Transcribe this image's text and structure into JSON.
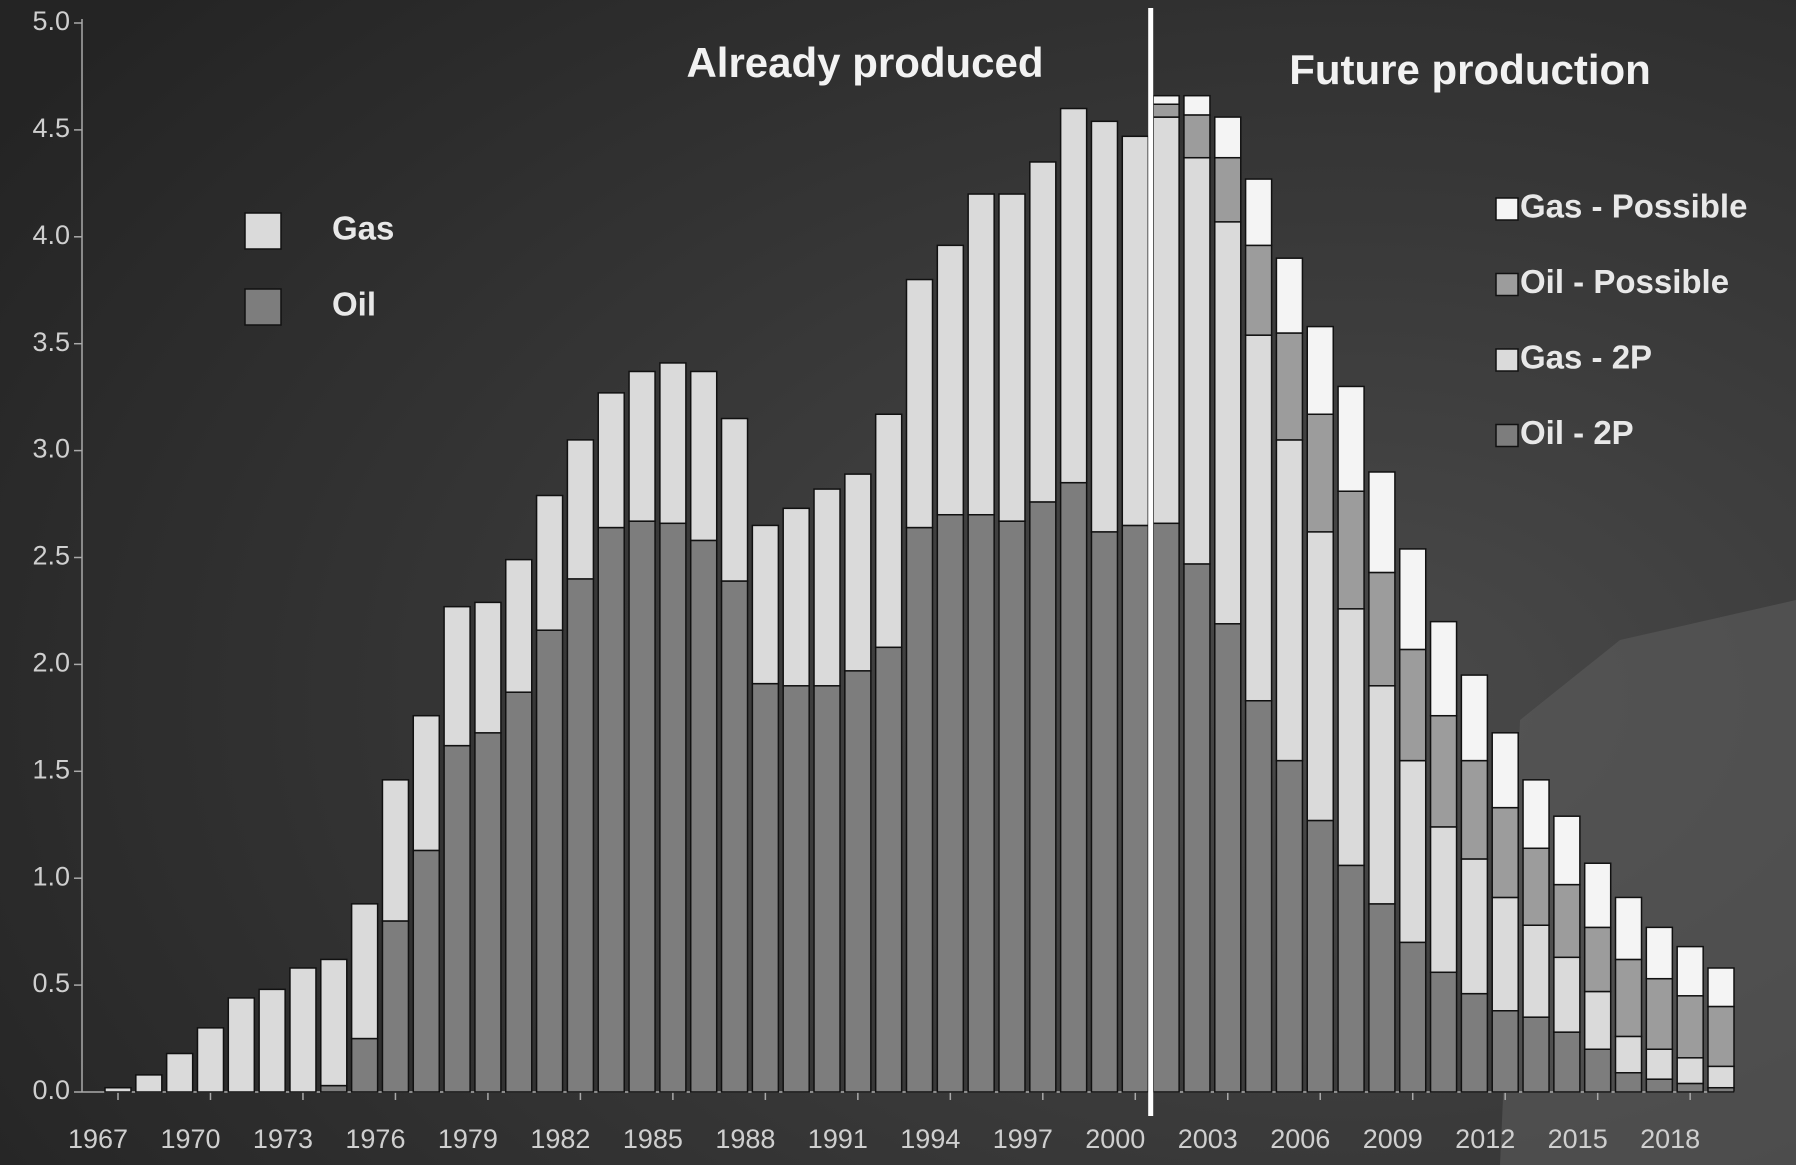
{
  "chart_data": {
    "type": "bar",
    "stacked": true,
    "annotations": [
      "Already produced",
      "Future production"
    ],
    "categories": [
      "1967",
      null,
      null,
      "1970",
      null,
      null,
      "1973",
      null,
      null,
      "1976",
      null,
      null,
      "1979",
      null,
      null,
      "1982",
      null,
      null,
      "1985",
      null,
      null,
      "1988",
      null,
      null,
      "1991",
      null,
      null,
      "1994",
      null,
      null,
      "1997",
      null,
      null,
      "2000",
      null,
      null,
      "2003",
      null,
      null,
      "2006",
      null,
      null,
      "2009",
      null,
      null,
      "2012",
      null,
      null,
      "2015",
      null,
      null,
      "2018",
      null
    ],
    "ylim": [
      0,
      5
    ],
    "yticks": [
      {
        "value": 0,
        "label": "0.0"
      },
      0.5,
      {
        "value": 1,
        "label": "1.0"
      },
      1.5,
      {
        "value": 2,
        "label": "2.0"
      },
      2.5,
      {
        "value": 3,
        "label": "3.0"
      },
      3.5,
      {
        "value": 4,
        "label": "4.0"
      },
      4.5,
      {
        "value": 5,
        "label": "5.0"
      }
    ],
    "series": [
      {
        "name": "Oil",
        "color": "#7d7d7d",
        "values": [
          0,
          0,
          0,
          0,
          0,
          0,
          0,
          0.03,
          0.25,
          0.8,
          1.13,
          1.62,
          1.68,
          1.87,
          2.16,
          2.4,
          2.64,
          2.67,
          2.66,
          2.58,
          2.39,
          1.91,
          1.9,
          1.9,
          1.97,
          2.08,
          2.64,
          2.7,
          2.7,
          2.67,
          2.76,
          2.85,
          2.62,
          2.65,
          null,
          null,
          null,
          null,
          null,
          null,
          null,
          null,
          null,
          null,
          null,
          null,
          null,
          null,
          null,
          null,
          null,
          null,
          null
        ]
      },
      {
        "name": "Gas",
        "color": "#dadada",
        "values": [
          0.02,
          0.08,
          0.18,
          0.3,
          0.44,
          0.48,
          0.58,
          0.59,
          0.63,
          0.66,
          0.63,
          0.65,
          0.61,
          0.62,
          0.63,
          0.65,
          0.63,
          0.7,
          0.75,
          0.79,
          0.76,
          0.74,
          0.83,
          0.92,
          0.92,
          1.09,
          1.16,
          1.26,
          1.5,
          1.53,
          1.59,
          1.75,
          1.92,
          1.82,
          null,
          null,
          null,
          null,
          null,
          null,
          null,
          null,
          null,
          null,
          null,
          null,
          null,
          null,
          null,
          null,
          null,
          null,
          null
        ]
      },
      {
        "name": "Oil - 2P",
        "color": "#7d7d7d",
        "values": [
          null,
          null,
          null,
          null,
          null,
          null,
          null,
          null,
          null,
          null,
          null,
          null,
          null,
          null,
          null,
          null,
          null,
          null,
          null,
          null,
          null,
          null,
          null,
          null,
          null,
          null,
          null,
          null,
          null,
          null,
          null,
          null,
          null,
          null,
          2.66,
          2.47,
          2.19,
          1.83,
          1.55,
          1.27,
          1.06,
          0.88,
          0.7,
          0.56,
          0.46,
          0.38,
          0.35,
          0.28,
          0.2,
          0.09,
          0.06,
          0.04,
          0.02
        ]
      },
      {
        "name": "Gas - 2P",
        "color": "#dadada",
        "values": [
          null,
          null,
          null,
          null,
          null,
          null,
          null,
          null,
          null,
          null,
          null,
          null,
          null,
          null,
          null,
          null,
          null,
          null,
          null,
          null,
          null,
          null,
          null,
          null,
          null,
          null,
          null,
          null,
          null,
          null,
          null,
          null,
          null,
          null,
          1.9,
          1.9,
          1.88,
          1.71,
          1.5,
          1.35,
          1.2,
          1.02,
          0.85,
          0.68,
          0.63,
          0.53,
          0.43,
          0.35,
          0.27,
          0.17,
          0.14,
          0.12,
          0.1
        ]
      },
      {
        "name": "Oil - Possible",
        "color": "#9c9c9c",
        "values": [
          null,
          null,
          null,
          null,
          null,
          null,
          null,
          null,
          null,
          null,
          null,
          null,
          null,
          null,
          null,
          null,
          null,
          null,
          null,
          null,
          null,
          null,
          null,
          null,
          null,
          null,
          null,
          null,
          null,
          null,
          null,
          null,
          null,
          null,
          0.06,
          0.2,
          0.3,
          0.42,
          0.5,
          0.55,
          0.55,
          0.53,
          0.52,
          0.52,
          0.46,
          0.42,
          0.36,
          0.34,
          0.3,
          0.36,
          0.33,
          0.29,
          0.28
        ]
      },
      {
        "name": "Gas - Possible",
        "color": "#f4f4f4",
        "values": [
          null,
          null,
          null,
          null,
          null,
          null,
          null,
          null,
          null,
          null,
          null,
          null,
          null,
          null,
          null,
          null,
          null,
          null,
          null,
          null,
          null,
          null,
          null,
          null,
          null,
          null,
          null,
          null,
          null,
          null,
          null,
          null,
          null,
          null,
          0.04,
          0.09,
          0.19,
          0.31,
          0.35,
          0.41,
          0.49,
          0.47,
          0.47,
          0.44,
          0.4,
          0.35,
          0.32,
          0.32,
          0.3,
          0.29,
          0.24,
          0.23,
          0.18
        ]
      }
    ]
  }
}
